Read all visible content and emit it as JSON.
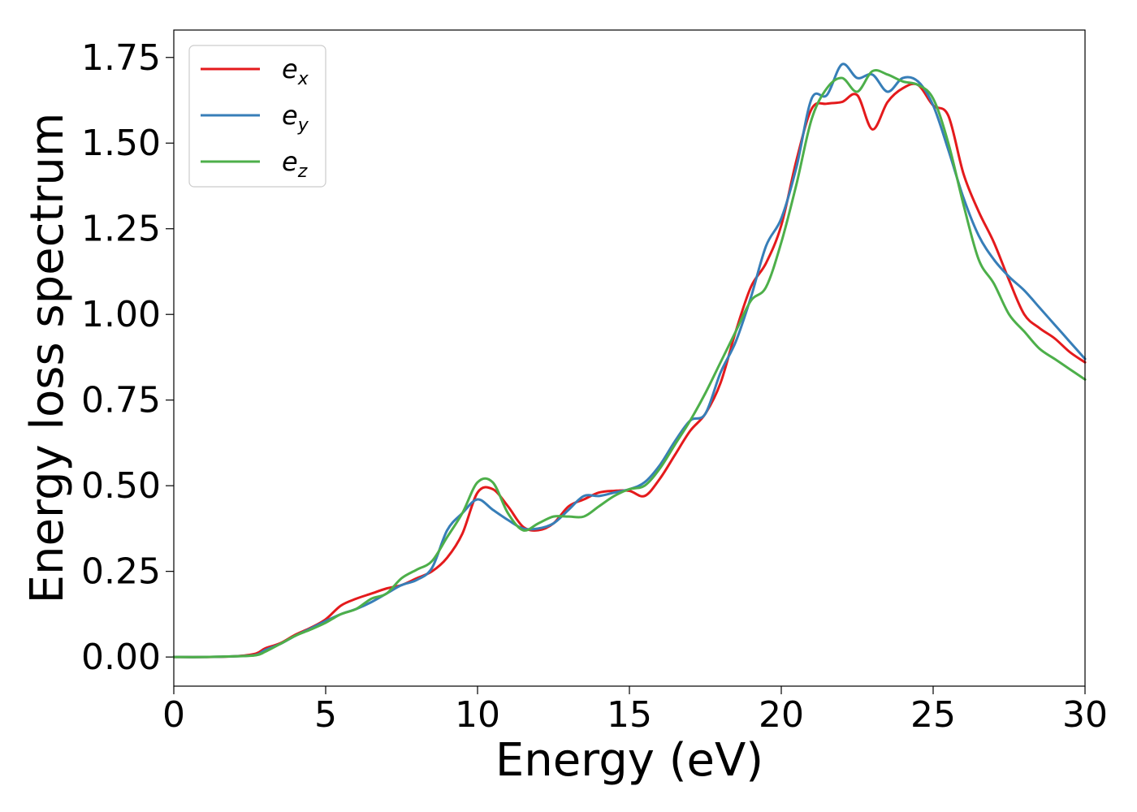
{
  "chart_data": {
    "type": "line",
    "xlabel": "Energy (eV)",
    "ylabel": "Energy loss spectrum",
    "xlim": [
      0,
      30
    ],
    "ylim": [
      -0.085,
      1.83
    ],
    "xticks": [
      "0",
      "5",
      "10",
      "15",
      "20",
      "25",
      "30"
    ],
    "yticks": [
      "0.00",
      "0.25",
      "0.50",
      "0.75",
      "1.00",
      "1.25",
      "1.50",
      "1.75"
    ],
    "grid": false,
    "legend_position": "top-left",
    "x": [
      0,
      1,
      2,
      2.7,
      3,
      3.5,
      4,
      4.5,
      5,
      5.5,
      6,
      6.5,
      7,
      7.5,
      8,
      8.5,
      9,
      9.5,
      10,
      10.5,
      11,
      11.5,
      12,
      12.5,
      13,
      13.5,
      14,
      14.5,
      15,
      15.5,
      16,
      16.5,
      17,
      17.5,
      18,
      18.5,
      19,
      19.5,
      20,
      20.5,
      21,
      21.5,
      22,
      22.5,
      23,
      23.5,
      24,
      24.5,
      25,
      25.5,
      26,
      26.5,
      27,
      27.5,
      28,
      28.5,
      29,
      29.5,
      30
    ],
    "series": [
      {
        "name": "e",
        "subscript": "x",
        "color": "#e41a1c",
        "values": [
          0,
          0,
          0.002,
          0.01,
          0.025,
          0.04,
          0.065,
          0.085,
          0.11,
          0.15,
          0.17,
          0.185,
          0.2,
          0.21,
          0.23,
          0.25,
          0.29,
          0.36,
          0.48,
          0.49,
          0.44,
          0.38,
          0.37,
          0.39,
          0.44,
          0.46,
          0.48,
          0.485,
          0.485,
          0.47,
          0.52,
          0.59,
          0.66,
          0.71,
          0.8,
          0.95,
          1.08,
          1.15,
          1.26,
          1.45,
          1.6,
          1.615,
          1.62,
          1.64,
          1.54,
          1.62,
          1.66,
          1.67,
          1.61,
          1.58,
          1.41,
          1.3,
          1.21,
          1.1,
          1.0,
          0.96,
          0.93,
          0.89,
          0.86
        ]
      },
      {
        "name": "e",
        "subscript": "y",
        "color": "#377eb8",
        "values": [
          0,
          0,
          0.002,
          0.006,
          0.02,
          0.038,
          0.062,
          0.083,
          0.105,
          0.125,
          0.14,
          0.16,
          0.185,
          0.21,
          0.225,
          0.26,
          0.37,
          0.42,
          0.46,
          0.43,
          0.4,
          0.375,
          0.375,
          0.39,
          0.43,
          0.47,
          0.47,
          0.48,
          0.49,
          0.51,
          0.56,
          0.63,
          0.69,
          0.71,
          0.83,
          0.92,
          1.05,
          1.2,
          1.28,
          1.43,
          1.63,
          1.64,
          1.73,
          1.69,
          1.7,
          1.65,
          1.69,
          1.68,
          1.61,
          1.48,
          1.34,
          1.23,
          1.16,
          1.11,
          1.07,
          1.02,
          0.97,
          0.92,
          0.87
        ]
      },
      {
        "name": "e",
        "subscript": "z",
        "color": "#4daf4a",
        "values": [
          0,
          0,
          0.002,
          0.005,
          0.015,
          0.038,
          0.062,
          0.08,
          0.1,
          0.125,
          0.14,
          0.17,
          0.185,
          0.23,
          0.255,
          0.28,
          0.35,
          0.42,
          0.51,
          0.51,
          0.42,
          0.37,
          0.39,
          0.41,
          0.41,
          0.41,
          0.44,
          0.47,
          0.49,
          0.5,
          0.55,
          0.62,
          0.69,
          0.77,
          0.86,
          0.95,
          1.04,
          1.08,
          1.21,
          1.38,
          1.57,
          1.66,
          1.69,
          1.65,
          1.71,
          1.7,
          1.68,
          1.67,
          1.63,
          1.5,
          1.32,
          1.16,
          1.09,
          1.0,
          0.95,
          0.9,
          0.87,
          0.84,
          0.81
        ]
      }
    ]
  }
}
